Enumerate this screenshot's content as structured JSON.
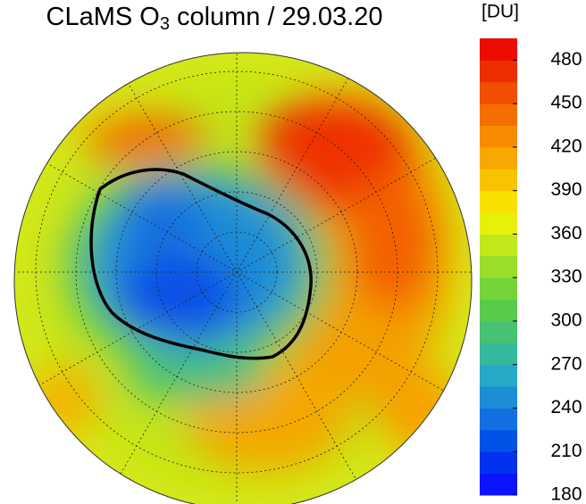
{
  "title": {
    "prefix": "CLaMS O",
    "subscript": "3",
    "suffix": "column / 29.03.20"
  },
  "colorbar": {
    "unit": "[DU]",
    "lim": [
      180,
      495
    ],
    "ticks": [
      180,
      210,
      240,
      270,
      300,
      330,
      360,
      390,
      420,
      450,
      480
    ],
    "colors": [
      "#0a14ff",
      "#0032f0",
      "#0052e6",
      "#1270e0",
      "#1c8ed6",
      "#26a8c6",
      "#36b89c",
      "#46c272",
      "#58ca4c",
      "#74d43a",
      "#98de2a",
      "#c0e81a",
      "#e8f00a",
      "#f8e000",
      "#f8c400",
      "#f8a800",
      "#f88c00",
      "#f46e00",
      "#f04e00",
      "#ee2e00",
      "#ec0c00"
    ]
  }
}
